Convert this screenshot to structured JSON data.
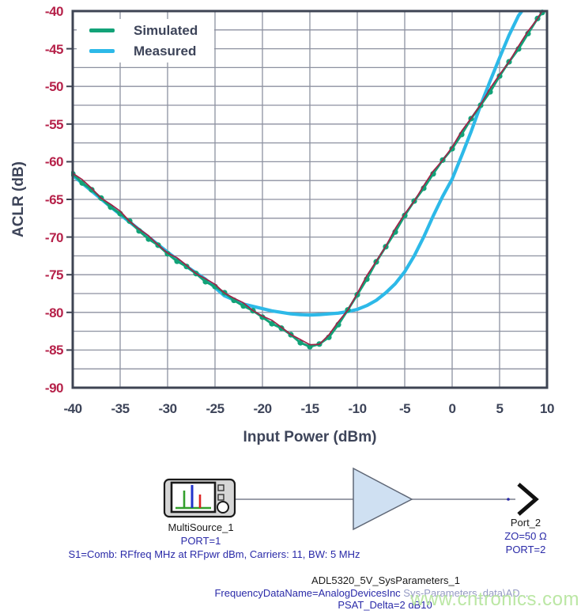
{
  "chart": {
    "y_axis_title": "ACLR (dB)",
    "x_axis_title": "Input Power (dBm)",
    "y_tick_labels": [
      "-40",
      "-45",
      "-50",
      "-55",
      "-60",
      "-65",
      "-70",
      "-75",
      "-80",
      "-85",
      "-90"
    ],
    "x_tick_labels": [
      "-40",
      "-35",
      "-30",
      "-25",
      "-20",
      "-15",
      "-10",
      "-5",
      "0",
      "5",
      "10"
    ],
    "legend": [
      {
        "label": "Simulated",
        "color": "#12a278"
      },
      {
        "label": "Measured",
        "color": "#2db9e8"
      }
    ]
  },
  "chart_data": {
    "type": "line",
    "title": "",
    "xlabel": "Input Power (dBm)",
    "ylabel": "ACLR (dB)",
    "xlim": [
      -40,
      10
    ],
    "ylim": [
      -90,
      -40
    ],
    "x_tick_step": 5,
    "y_tick_step": 5,
    "y_minor_step": 2.5,
    "grid": "on",
    "legend_position": "top-left",
    "series": [
      {
        "name": "Simulated",
        "marker": "circle",
        "marker_color": "#12a278",
        "line_color": "#a02348",
        "points": [
          [
            -40,
            -61.6
          ],
          [
            -39,
            -62.7
          ],
          [
            -38,
            -63.8
          ],
          [
            -37,
            -64.9
          ],
          [
            -36,
            -65.9
          ],
          [
            -35,
            -66.9
          ],
          [
            -34,
            -68.0
          ],
          [
            -33,
            -69.1
          ],
          [
            -32,
            -70.2
          ],
          [
            -31,
            -71.2
          ],
          [
            -30,
            -72.2
          ],
          [
            -29,
            -73.1
          ],
          [
            -28,
            -74.0
          ],
          [
            -27,
            -74.9
          ],
          [
            -26,
            -75.8
          ],
          [
            -25,
            -76.6
          ],
          [
            -24,
            -77.5
          ],
          [
            -23,
            -78.3
          ],
          [
            -22,
            -79.1
          ],
          [
            -21,
            -79.9
          ],
          [
            -20,
            -80.6
          ],
          [
            -19,
            -81.4
          ],
          [
            -18,
            -82.2
          ],
          [
            -17,
            -83.0
          ],
          [
            -16,
            -83.9
          ],
          [
            -15,
            -84.6
          ],
          [
            -14,
            -84.3
          ],
          [
            -13,
            -83.2
          ],
          [
            -12,
            -81.6
          ],
          [
            -11,
            -79.8
          ],
          [
            -10,
            -77.6
          ],
          [
            -9,
            -75.5
          ],
          [
            -8,
            -73.4
          ],
          [
            -7,
            -71.3
          ],
          [
            -6,
            -69.2
          ],
          [
            -5,
            -67.2
          ],
          [
            -4,
            -65.3
          ],
          [
            -3,
            -63.4
          ],
          [
            -2,
            -61.6
          ],
          [
            -1,
            -59.9
          ],
          [
            0,
            -58.2
          ],
          [
            1,
            -56.3
          ],
          [
            2,
            -54.4
          ],
          [
            3,
            -52.5
          ],
          [
            4,
            -50.6
          ],
          [
            5,
            -48.7
          ],
          [
            6,
            -46.8
          ],
          [
            7,
            -44.9
          ],
          [
            8,
            -43.0
          ],
          [
            9,
            -41.1
          ],
          [
            9.5,
            -40.1
          ]
        ]
      },
      {
        "name": "Measured",
        "marker": "none",
        "line_color": "#2db9e8",
        "points": [
          [
            -40,
            -61.8
          ],
          [
            -38,
            -63.9
          ],
          [
            -36,
            -66.0
          ],
          [
            -34,
            -68.0
          ],
          [
            -32,
            -70.0
          ],
          [
            -30,
            -72.0
          ],
          [
            -28,
            -73.9
          ],
          [
            -26,
            -75.6
          ],
          [
            -24,
            -77.8
          ],
          [
            -22,
            -78.9
          ],
          [
            -21,
            -79.2
          ],
          [
            -20,
            -79.5
          ],
          [
            -19,
            -79.8
          ],
          [
            -18,
            -80.0
          ],
          [
            -17,
            -80.2
          ],
          [
            -16,
            -80.3
          ],
          [
            -15,
            -80.35
          ],
          [
            -14,
            -80.3
          ],
          [
            -13,
            -80.2
          ],
          [
            -12,
            -80.1
          ],
          [
            -11,
            -79.9
          ],
          [
            -10,
            -79.6
          ],
          [
            -9,
            -79.1
          ],
          [
            -8,
            -78.4
          ],
          [
            -7,
            -77.4
          ],
          [
            -6,
            -76.2
          ],
          [
            -5,
            -74.6
          ],
          [
            -4,
            -72.5
          ],
          [
            -3,
            -70.0
          ],
          [
            -2,
            -67.2
          ],
          [
            -1,
            -64.6
          ],
          [
            0,
            -62.3
          ],
          [
            1,
            -59.2
          ],
          [
            2,
            -56.0
          ],
          [
            3,
            -52.5
          ],
          [
            4,
            -49.3
          ],
          [
            5,
            -46.2
          ],
          [
            6,
            -43.2
          ],
          [
            7,
            -40.6
          ],
          [
            7.3,
            -40.1
          ]
        ]
      }
    ]
  },
  "schematic": {
    "source_name": "MultiSource_1",
    "source_port": "PORT=1",
    "source_params": "S1=Comb: RFfreq MHz at RFpwr dBm, Carriers: 11, BW: 5 MHz",
    "amp_name": "ADL5320_5V_SysParameters_1",
    "amp_param1_head": "FrequencyDataName=AnalogDevicesInc",
    "amp_param1_tail": " Sys-Parameters_data\\AD...",
    "amp_param2": "PSAT_Delta=2 dB10",
    "port_name": "Port_2",
    "port_z": "ZO=50 Ω",
    "port_num": "PORT=2"
  },
  "watermark": "www.cntronics.com",
  "colors": {
    "grid": "#8d91a0",
    "axis_frame": "#3e4453",
    "y_tick_text": "#b6224a",
    "x_tick_text": "#3d4459",
    "title_text": "#3d4459",
    "sim_green": "#12a278",
    "sim_line_red": "#a02348",
    "meas_cyan": "#2db9e8",
    "schem_blue_text": "#2a2aa8",
    "schem_black_text": "#1a1a1a",
    "schem_faded_text": "#959bc4",
    "watermark_green": "#b8e6a0",
    "wire_gray": "#7a7f8e",
    "amp_fill": "#cfe0f2",
    "amp_stroke": "#5f6776",
    "icon_fill": "#d6d6d6",
    "icon_stroke": "#1a1a1a",
    "bar_blue": "#2233cc",
    "bar_green": "#33a02c",
    "bar_red": "#dd2222"
  }
}
